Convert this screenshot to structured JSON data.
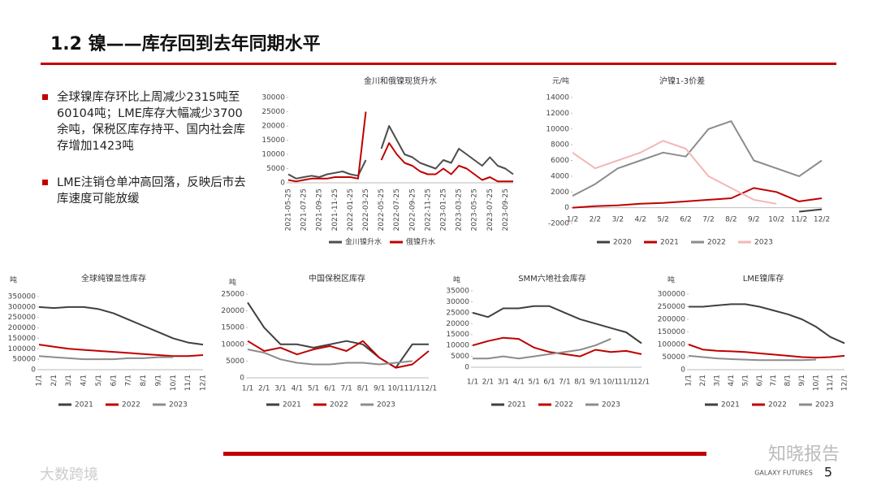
{
  "header": {
    "title": "1.2 镍——库存回到去年同期水平"
  },
  "bullets": [
    "全球镍库存环比上周减少2315吨至60104吨；LME库存大幅减少3700余吨，保税区库存持平、国内社会库存增加1423吨",
    "LME注销仓单冲高回落，反映后市去库速度可能放缓"
  ],
  "footer": {
    "brand": "GALAXY FUTURES",
    "page": "5",
    "watermark": "知晓报告",
    "watermark2": "大数跨境"
  },
  "chart_data": [
    {
      "type": "line",
      "title": "金川和俄镍现货升水",
      "categories": [
        "2021-05-25",
        null,
        "2021-07-25",
        null,
        "2021-09-25",
        null,
        "2021-11-25",
        null,
        "2022-01-25",
        null,
        "2022-03-25",
        null,
        "2022-05-25",
        null,
        "2022-07-25",
        null,
        "2022-09-25",
        null,
        "2022-11-25",
        null,
        "2023-01-25",
        null,
        "2023-03-25",
        null,
        "2023-05-25",
        null,
        "2023-07-25",
        null,
        "2023-09-25",
        null
      ],
      "series": [
        {
          "name": "金川镍升水",
          "color": "#4d4d4d",
          "values": [
            3000,
            1500,
            2000,
            2500,
            2000,
            3000,
            3500,
            4000,
            3000,
            2500,
            8000,
            null,
            12000,
            20000,
            15000,
            10000,
            9000,
            7000,
            6000,
            5000,
            8000,
            7000,
            12000,
            10000,
            8000,
            6000,
            9000,
            6000,
            5000,
            3000
          ]
        },
        {
          "name": "俄镍升水",
          "color": "#c00000",
          "values": [
            1000,
            500,
            1000,
            1500,
            1500,
            1500,
            2000,
            2000,
            2000,
            1500,
            25000,
            null,
            8000,
            14000,
            10000,
            7000,
            6000,
            4000,
            3000,
            3000,
            5000,
            3000,
            6000,
            5000,
            3000,
            1000,
            2000,
            500,
            500,
            500
          ]
        }
      ],
      "ylim": [
        0,
        30000
      ],
      "yticks": [
        0,
        5000,
        10000,
        15000,
        20000,
        25000,
        30000
      ]
    },
    {
      "type": "line",
      "title": "沪镍1-3价差",
      "y_label": "元/吨",
      "categories": [
        "1/2",
        "2/2",
        "3/2",
        "4/2",
        "5/2",
        "6/2",
        "7/2",
        "8/2",
        "9/2",
        "10/2",
        "11/2",
        "12/2"
      ],
      "series": [
        {
          "name": "2020",
          "color": "#404040",
          "values": [
            null,
            null,
            null,
            null,
            null,
            null,
            null,
            null,
            null,
            null,
            -500,
            -200
          ]
        },
        {
          "name": "2021",
          "color": "#c00000",
          "values": [
            0,
            200,
            300,
            500,
            600,
            800,
            1000,
            1200,
            2500,
            2000,
            800,
            1200
          ]
        },
        {
          "name": "2022",
          "color": "#8c8c8c",
          "values": [
            1500,
            3000,
            5000,
            6000,
            7000,
            6500,
            10000,
            11000,
            6000,
            5000,
            4000,
            6000
          ]
        },
        {
          "name": "2023",
          "color": "#f4b6b6",
          "values": [
            7000,
            5000,
            6000,
            7000,
            8500,
            7500,
            4000,
            2500,
            1000,
            500,
            null,
            null
          ]
        }
      ],
      "ylim": [
        -2000,
        14000
      ],
      "yticks": [
        -2000,
        0,
        2000,
        4000,
        6000,
        8000,
        10000,
        12000,
        14000
      ]
    },
    {
      "type": "line",
      "title": "全球纯镍显性库存",
      "y_label": "吨",
      "categories": [
        "1/1",
        "2/1",
        "3/1",
        "4/1",
        "5/1",
        "6/1",
        "7/1",
        "8/1",
        "9/1",
        "10/1",
        "11/1",
        "12/1"
      ],
      "series": [
        {
          "name": "2021",
          "color": "#404040",
          "values": [
            300000,
            295000,
            300000,
            300000,
            290000,
            270000,
            240000,
            210000,
            180000,
            150000,
            130000,
            120000
          ]
        },
        {
          "name": "2022",
          "color": "#c00000",
          "values": [
            120000,
            110000,
            100000,
            95000,
            90000,
            85000,
            80000,
            75000,
            70000,
            65000,
            65000,
            70000
          ]
        },
        {
          "name": "2023",
          "color": "#8c8c8c",
          "values": [
            65000,
            60000,
            55000,
            50000,
            50000,
            50000,
            55000,
            55000,
            60000,
            60000,
            null,
            null
          ]
        }
      ],
      "ylim": [
        0,
        350000
      ],
      "yticks": [
        0,
        50000,
        100000,
        150000,
        200000,
        250000,
        300000,
        350000
      ]
    },
    {
      "type": "line",
      "title": "中国保税区库存",
      "y_label": "吨",
      "categories": [
        "1/1",
        "2/1",
        "3/1",
        "4/1",
        "5/1",
        "6/1",
        "7/1",
        "8/1",
        "9/1",
        "10/1",
        "11/1",
        "12/1"
      ],
      "series": [
        {
          "name": "2021",
          "color": "#404040",
          "values": [
            22500,
            15000,
            10000,
            10000,
            9000,
            10000,
            11000,
            10000,
            6000,
            3000,
            10000,
            10000
          ]
        },
        {
          "name": "2022",
          "color": "#c00000",
          "values": [
            11000,
            8000,
            9000,
            7000,
            8500,
            9500,
            8000,
            11000,
            6000,
            3000,
            4000,
            8000
          ]
        },
        {
          "name": "2023",
          "color": "#8c8c8c",
          "values": [
            8500,
            7500,
            5500,
            4500,
            4000,
            4000,
            4500,
            4500,
            4000,
            4500,
            5000,
            null
          ]
        }
      ],
      "ylim": [
        0,
        25000
      ],
      "yticks": [
        0,
        5000,
        10000,
        15000,
        20000,
        25000
      ]
    },
    {
      "type": "line",
      "title": "SMM六地社会库存",
      "y_label": "吨",
      "categories": [
        "1/1",
        "2/1",
        "3/1",
        "4/1",
        "5/1",
        "6/1",
        "7/1",
        "8/1",
        "9/1",
        "10/1",
        "11/1",
        "12/1"
      ],
      "series": [
        {
          "name": "2021",
          "color": "#404040",
          "values": [
            25000,
            23000,
            27000,
            27000,
            28000,
            28000,
            25000,
            22000,
            20000,
            18000,
            16000,
            11000
          ]
        },
        {
          "name": "2022",
          "color": "#c00000",
          "values": [
            10000,
            12000,
            13500,
            13000,
            9000,
            7000,
            6000,
            5000,
            8000,
            7000,
            7500,
            6000
          ]
        },
        {
          "name": "2023",
          "color": "#8c8c8c",
          "values": [
            4000,
            4000,
            5000,
            4000,
            5000,
            6000,
            7000,
            8000,
            10000,
            13000,
            null,
            null
          ]
        }
      ],
      "ylim": [
        0,
        35000
      ],
      "yticks": [
        0,
        5000,
        10000,
        15000,
        20000,
        25000,
        30000,
        35000
      ]
    },
    {
      "type": "line",
      "title": "LME镍库存",
      "y_label": "吨",
      "categories": [
        "1/1",
        "2/1",
        "3/1",
        "4/1",
        "5/1",
        "6/1",
        "7/1",
        "8/1",
        "9/1",
        "10/1",
        "11/1",
        "12/1"
      ],
      "series": [
        {
          "name": "2021",
          "color": "#404040",
          "values": [
            250000,
            250000,
            255000,
            260000,
            260000,
            250000,
            235000,
            220000,
            200000,
            170000,
            130000,
            105000
          ]
        },
        {
          "name": "2022",
          "color": "#c00000",
          "values": [
            100000,
            80000,
            75000,
            73000,
            70000,
            65000,
            60000,
            55000,
            50000,
            48000,
            50000,
            55000
          ]
        },
        {
          "name": "2023",
          "color": "#8c8c8c",
          "values": [
            55000,
            50000,
            45000,
            42000,
            40000,
            38000,
            38000,
            38000,
            38000,
            40000,
            null,
            null
          ]
        }
      ],
      "ylim": [
        0,
        300000
      ],
      "yticks": [
        0,
        50000,
        100000,
        150000,
        200000,
        250000,
        300000
      ]
    }
  ]
}
